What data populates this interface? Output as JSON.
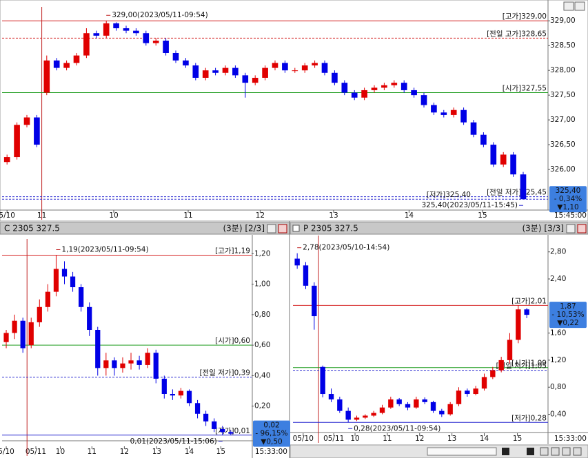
{
  "chart_data": [
    {
      "type": "candlestick",
      "time_label": "15:45:00",
      "up_color": "#e00000",
      "down_color": "#0000e6",
      "xlim": [
        -0.5,
        54.5
      ],
      "ylim": [
        325.25,
        329.17
      ],
      "session_start": 4,
      "yticks": [
        {
          "value": 329,
          "label": "329,00"
        },
        {
          "value": 328.5,
          "label": "328,50"
        },
        {
          "value": 328,
          "label": "328,00"
        },
        {
          "value": 327.5,
          "label": "327,50"
        },
        {
          "value": 327,
          "label": "327,00"
        },
        {
          "value": 326.5,
          "label": "326,50"
        },
        {
          "value": 326,
          "label": "326,00"
        }
      ],
      "xticks": [
        {
          "value": 0,
          "label": "5/10"
        },
        {
          "value": 3.5,
          "label": "11"
        },
        {
          "value": 10.75,
          "label": "10"
        },
        {
          "value": 18.25,
          "label": "11"
        },
        {
          "value": 25.5,
          "label": "12"
        },
        {
          "value": 32.9,
          "label": "13"
        },
        {
          "value": 40.5,
          "label": "14"
        },
        {
          "value": 47.9,
          "label": "15"
        }
      ],
      "open": [
        326.15,
        326.25,
        326.9,
        327.05,
        327.55,
        328.2,
        328.05,
        328.15,
        328.3,
        328.75,
        328.7,
        328.95,
        328.85,
        328.8,
        328.75,
        328.55,
        328.6,
        328.35,
        328.2,
        328.1,
        327.85,
        328.0,
        327.95,
        328.05,
        327.9,
        327.75,
        327.85,
        328.05,
        328.15,
        328.0,
        328.0,
        328.1,
        328.15,
        327.95,
        327.75,
        327.55,
        327.45,
        327.6,
        327.65,
        327.7,
        327.75,
        327.6,
        327.5,
        327.3,
        327.15,
        327.1,
        327.2,
        326.95,
        326.7,
        326.5,
        326.1,
        326.3,
        325.9
      ],
      "high": [
        326.3,
        326.95,
        327.1,
        327.1,
        328.3,
        328.25,
        328.2,
        328.35,
        328.85,
        328.8,
        329.0,
        328.97,
        328.9,
        328.85,
        328.8,
        328.65,
        328.65,
        328.4,
        328.25,
        328.15,
        328.05,
        328.05,
        328.1,
        328.1,
        327.95,
        327.9,
        328.1,
        328.2,
        328.2,
        328.05,
        328.15,
        328.2,
        328.2,
        328.0,
        327.8,
        327.6,
        327.65,
        327.7,
        327.75,
        327.8,
        327.8,
        327.65,
        327.55,
        327.35,
        327.2,
        327.25,
        327.25,
        327.0,
        326.75,
        326.55,
        326.35,
        326.35,
        325.95
      ],
      "low": [
        326.1,
        326.2,
        326.85,
        326.45,
        327.5,
        328.0,
        328.0,
        328.1,
        328.25,
        328.65,
        328.65,
        328.8,
        328.75,
        328.7,
        328.5,
        328.5,
        328.3,
        328.15,
        328.05,
        327.8,
        327.8,
        327.9,
        327.9,
        327.85,
        327.45,
        327.7,
        327.8,
        328.0,
        327.95,
        327.95,
        327.95,
        328.05,
        327.9,
        327.7,
        327.5,
        327.4,
        327.4,
        327.55,
        327.6,
        327.65,
        327.55,
        327.45,
        327.25,
        327.1,
        327.05,
        327.05,
        326.9,
        326.65,
        326.45,
        326.05,
        326.05,
        325.85,
        325.4
      ],
      "close": [
        326.25,
        326.9,
        327.05,
        326.5,
        328.2,
        328.05,
        328.15,
        328.3,
        328.75,
        328.7,
        328.95,
        328.85,
        328.8,
        328.75,
        328.55,
        328.6,
        328.35,
        328.2,
        328.1,
        327.85,
        328.0,
        327.95,
        328.05,
        327.9,
        327.75,
        327.85,
        328.05,
        328.15,
        328.0,
        328.0,
        328.1,
        328.15,
        327.95,
        327.75,
        327.55,
        327.45,
        327.6,
        327.65,
        327.7,
        327.75,
        327.6,
        327.5,
        327.3,
        327.15,
        327.1,
        327.2,
        326.95,
        326.7,
        326.5,
        326.1,
        326.3,
        325.9,
        325.4
      ],
      "levels": [
        {
          "label": "[고가]329,00",
          "value": 329.0,
          "color": "#d42020",
          "dash": false
        },
        {
          "label": "[전일 고가]328,65",
          "value": 328.65,
          "color": "#d42020",
          "dash": true
        },
        {
          "label": "[시가]327,55",
          "value": 327.55,
          "color": "#1a9a1a",
          "dash": false
        },
        {
          "label": "[전일 저가]325,45",
          "value": 325.45,
          "color": "#2a2ad0",
          "dash": true
        },
        {
          "label": "[저가]325,40",
          "value": 325.4,
          "color": "#2a2ad0",
          "dash": true
        }
      ],
      "annotations": [
        {
          "text": "329,00(2023/05/11-09:54)",
          "value": 329.0,
          "x": 10,
          "align": "start",
          "place": "above"
        },
        {
          "text": "325,40(2023/05/11-15:45)",
          "value": 325.4,
          "x": 52,
          "align": "end",
          "place": "below"
        }
      ],
      "price_box": {
        "price": "325,40",
        "change": "- 0,34%",
        "diff": "▼1,10"
      }
    },
    {
      "type": "candlestick",
      "title": "C 2305 327.5",
      "interval": "(3분) [2/3]",
      "time_label": "15:33:00",
      "up_color": "#e00000",
      "down_color": "#0000e6",
      "xlim": [
        -0.5,
        29.5
      ],
      "ylim": [
        0,
        1.26
      ],
      "session_start": 3,
      "yticks": [
        {
          "value": 1.2,
          "label": "1,20"
        },
        {
          "value": 1.0,
          "label": "1,00"
        },
        {
          "value": 0.8,
          "label": "0,80"
        },
        {
          "value": 0.6,
          "label": "0,60"
        },
        {
          "value": 0.4,
          "label": "0,40"
        },
        {
          "value": 0.2,
          "label": "0,20"
        }
      ],
      "xticks": [
        {
          "value": 0,
          "label": "5/10"
        },
        {
          "value": 3.56,
          "label": "05/11"
        },
        {
          "value": 6.5,
          "label": "10"
        },
        {
          "value": 10.3,
          "label": "11"
        },
        {
          "value": 14.2,
          "label": "12"
        },
        {
          "value": 18.1,
          "label": "13"
        },
        {
          "value": 22,
          "label": "14"
        },
        {
          "value": 25.8,
          "label": "15"
        }
      ],
      "open": [
        0.62,
        0.68,
        0.76,
        0.6,
        0.75,
        0.85,
        0.95,
        1.1,
        1.05,
        0.98,
        0.85,
        0.7,
        0.45,
        0.5,
        0.45,
        0.48,
        0.5,
        0.47,
        0.55,
        0.38,
        0.28,
        0.27,
        0.3,
        0.22,
        0.15,
        0.1,
        0.05,
        0.03
      ],
      "high": [
        0.7,
        0.8,
        0.78,
        0.78,
        0.9,
        1.0,
        1.19,
        1.15,
        1.08,
        1.0,
        0.88,
        0.72,
        0.55,
        0.52,
        0.52,
        0.55,
        0.53,
        0.58,
        0.57,
        0.4,
        0.31,
        0.32,
        0.31,
        0.24,
        0.17,
        0.12,
        0.07,
        0.04
      ],
      "low": [
        0.58,
        0.64,
        0.55,
        0.58,
        0.72,
        0.82,
        0.92,
        1.0,
        0.95,
        0.82,
        0.66,
        0.4,
        0.4,
        0.4,
        0.42,
        0.44,
        0.44,
        0.45,
        0.35,
        0.25,
        0.24,
        0.25,
        0.2,
        0.12,
        0.07,
        0.03,
        0.01,
        0.01
      ],
      "close": [
        0.68,
        0.76,
        0.58,
        0.75,
        0.85,
        0.95,
        1.1,
        1.05,
        0.98,
        0.85,
        0.7,
        0.45,
        0.5,
        0.45,
        0.48,
        0.5,
        0.47,
        0.55,
        0.38,
        0.28,
        0.27,
        0.3,
        0.22,
        0.15,
        0.1,
        0.05,
        0.03,
        0.02
      ],
      "levels": [
        {
          "label": "[고가]1,19",
          "value": 1.19,
          "color": "#d42020",
          "dash": false
        },
        {
          "label": "[시가]0,60",
          "value": 0.6,
          "color": "#1a9a1a",
          "dash": false
        },
        {
          "label": "[전일 저가]0,39",
          "value": 0.39,
          "color": "#2a2ad0",
          "dash": true
        },
        {
          "label": "[저가]0,01",
          "value": 0.01,
          "color": "#2a2ad0",
          "dash": false
        }
      ],
      "annotations": [
        {
          "text": "1,19(2023/05/11-09:54)",
          "value": 1.19,
          "x": 6,
          "align": "start",
          "place": "above"
        },
        {
          "text": "0,01(2023/05/11-15:06)",
          "value": 0.01,
          "x": 26,
          "align": "end",
          "place": "below"
        }
      ],
      "price_box": {
        "price": "0,02",
        "change": "- 96,15%",
        "diff": "▼0,50"
      }
    },
    {
      "type": "candlestick",
      "title": "P 2305 327.5",
      "interval": "(3분) [3/3]",
      "time_label": "15:33:00",
      "up_color": "#e00000",
      "down_color": "#0000e6",
      "xlim": [
        -0.5,
        29.5
      ],
      "ylim": [
        0.11,
        2.96
      ],
      "session_start": 3,
      "yticks": [
        {
          "value": 2.8,
          "label": "2,80"
        },
        {
          "value": 2.4,
          "label": "2,40"
        },
        {
          "value": 1.6,
          "label": "1,60"
        },
        {
          "value": 1.2,
          "label": "1,20"
        },
        {
          "value": 0.8,
          "label": "0,80"
        },
        {
          "value": 0.4,
          "label": "0,40"
        }
      ],
      "xticks": [
        {
          "value": 0.7,
          "label": "05/10"
        },
        {
          "value": 4.3,
          "label": "05/11"
        },
        {
          "value": 6.8,
          "label": "10"
        },
        {
          "value": 10.6,
          "label": "11"
        },
        {
          "value": 14.4,
          "label": "12"
        },
        {
          "value": 18.2,
          "label": "13"
        },
        {
          "value": 22,
          "label": "14"
        },
        {
          "value": 25.9,
          "label": "15"
        }
      ],
      "open": [
        2.7,
        2.6,
        2.3,
        1.1,
        0.7,
        0.62,
        0.45,
        0.32,
        0.35,
        0.38,
        0.42,
        0.5,
        0.62,
        0.55,
        0.5,
        0.62,
        0.58,
        0.45,
        0.4,
        0.55,
        0.75,
        0.7,
        0.78,
        0.95,
        1.05,
        1.2,
        1.5,
        1.95
      ],
      "high": [
        2.78,
        2.65,
        2.35,
        1.12,
        0.78,
        0.66,
        0.5,
        0.38,
        0.4,
        0.45,
        0.54,
        0.66,
        0.64,
        0.58,
        0.66,
        0.65,
        0.6,
        0.48,
        0.58,
        0.8,
        0.78,
        0.82,
        1.0,
        1.1,
        1.25,
        1.6,
        2.01,
        1.97
      ],
      "low": [
        2.55,
        2.25,
        1.65,
        0.65,
        0.58,
        0.42,
        0.28,
        0.3,
        0.33,
        0.36,
        0.4,
        0.48,
        0.52,
        0.46,
        0.48,
        0.55,
        0.42,
        0.36,
        0.38,
        0.52,
        0.66,
        0.68,
        0.75,
        0.92,
        1.02,
        1.15,
        1.45,
        1.82
      ],
      "close": [
        2.6,
        2.3,
        1.85,
        0.7,
        0.62,
        0.45,
        0.32,
        0.35,
        0.38,
        0.42,
        0.5,
        0.62,
        0.55,
        0.5,
        0.62,
        0.58,
        0.45,
        0.4,
        0.55,
        0.75,
        0.7,
        0.78,
        0.95,
        1.05,
        1.2,
        1.5,
        1.95,
        1.87
      ],
      "levels": [
        {
          "label": "[고가]2,01",
          "value": 2.01,
          "color": "#d42020",
          "dash": false
        },
        {
          "label": "[시가]1,09",
          "value": 1.09,
          "color": "#1a9a1a",
          "dash": false
        },
        {
          "label": "[전일 저가]1,05",
          "value": 1.05,
          "color": "#2a2ad0",
          "dash": true
        },
        {
          "label": "[저가]0,28",
          "value": 0.28,
          "color": "#2a2ad0",
          "dash": false
        }
      ],
      "annotations": [
        {
          "text": "2,78(2023/05/10-14:54)",
          "value": 2.78,
          "x": 0,
          "align": "start",
          "place": "above"
        },
        {
          "text": "0,28(2023/05/11-09:54)",
          "value": 0.28,
          "x": 6,
          "align": "start",
          "place": "below"
        }
      ],
      "price_box": {
        "price": "1,87",
        "change": "- 10,53%",
        "diff": "▼0,22"
      }
    }
  ]
}
